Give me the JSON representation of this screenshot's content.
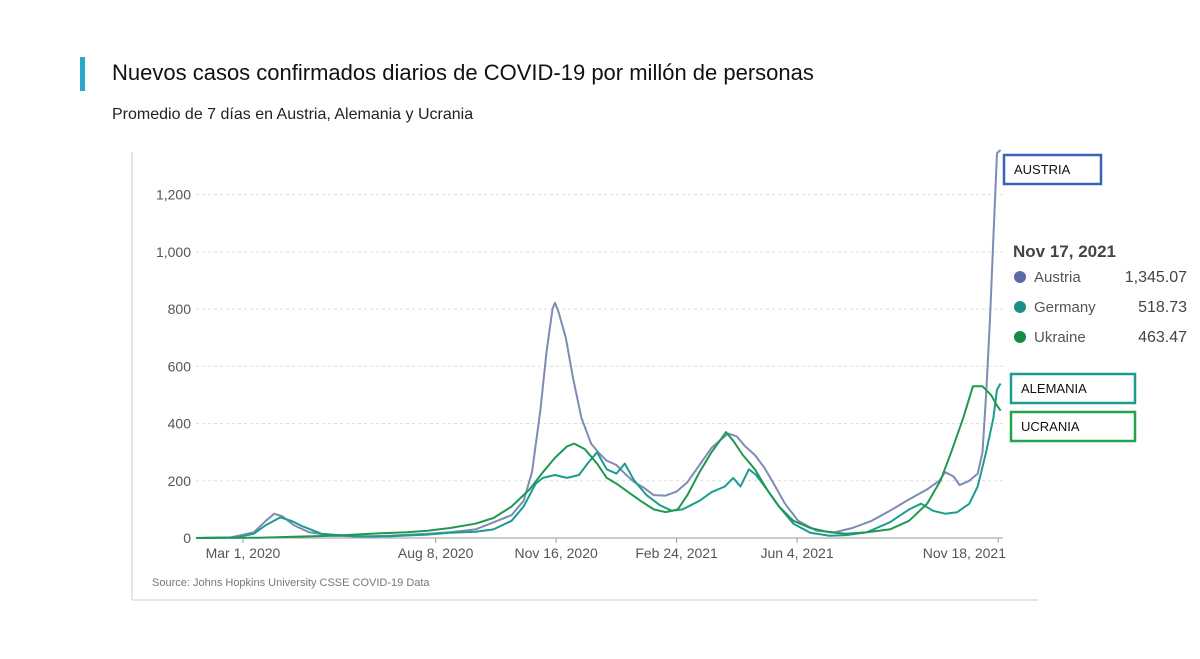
{
  "header": {
    "title": "Nuevos casos confirmados diarios de COVID-19 por millón de personas",
    "subtitle": "Promedio de 7 días en Austria, Alemania y Ucrania",
    "accent_color": "#2aa7c9"
  },
  "chart_data": {
    "type": "line",
    "title": "Nuevos casos confirmados diarios de COVID-19 por millón de personas",
    "subtitle": "Promedio de 7 días en Austria, Alemania y Ucrania",
    "xlabel": "",
    "ylabel": "",
    "x_ticks": [
      "Mar 1, 2020",
      "Aug 8, 2020",
      "Nov 16, 2020",
      "Feb 24, 2021",
      "Jun 4, 2021",
      "Nov 18, 2021"
    ],
    "y_ticks": [
      0,
      200,
      400,
      600,
      800,
      1000,
      1200
    ],
    "y_tick_labels": [
      "0",
      "200",
      "400",
      "600",
      "800",
      "1,000",
      "1,200"
    ],
    "ylim": [
      0,
      1300
    ],
    "xlim": [
      "2020-01-22",
      "2021-11-22"
    ],
    "grid": "horizontal dashed",
    "source": "Source: Johns Hopkins University CSSE COVID-19 Data",
    "series": [
      {
        "name": "Austria",
        "color": "#7d8cb5",
        "points": [
          [
            "2020-01-22",
            0
          ],
          [
            "2020-02-20",
            2
          ],
          [
            "2020-03-10",
            20
          ],
          [
            "2020-03-20",
            60
          ],
          [
            "2020-03-27",
            85
          ],
          [
            "2020-04-03",
            75
          ],
          [
            "2020-04-12",
            45
          ],
          [
            "2020-04-25",
            20
          ],
          [
            "2020-05-15",
            8
          ],
          [
            "2020-06-15",
            5
          ],
          [
            "2020-07-10",
            10
          ],
          [
            "2020-08-01",
            15
          ],
          [
            "2020-08-20",
            20
          ],
          [
            "2020-09-10",
            30
          ],
          [
            "2020-09-25",
            55
          ],
          [
            "2020-10-10",
            80
          ],
          [
            "2020-10-20",
            130
          ],
          [
            "2020-10-27",
            230
          ],
          [
            "2020-11-03",
            450
          ],
          [
            "2020-11-08",
            650
          ],
          [
            "2020-11-13",
            800
          ],
          [
            "2020-11-15",
            822
          ],
          [
            "2020-11-18",
            790
          ],
          [
            "2020-11-24",
            700
          ],
          [
            "2020-11-30",
            560
          ],
          [
            "2020-12-07",
            420
          ],
          [
            "2020-12-15",
            330
          ],
          [
            "2020-12-22",
            295
          ],
          [
            "2020-12-28",
            270
          ],
          [
            "2021-01-05",
            255
          ],
          [
            "2021-01-12",
            225
          ],
          [
            "2021-01-20",
            195
          ],
          [
            "2021-01-28",
            175
          ],
          [
            "2021-02-05",
            150
          ],
          [
            "2021-02-15",
            148
          ],
          [
            "2021-02-24",
            162
          ],
          [
            "2021-03-05",
            195
          ],
          [
            "2021-03-15",
            255
          ],
          [
            "2021-03-25",
            315
          ],
          [
            "2021-04-02",
            345
          ],
          [
            "2021-04-08",
            365
          ],
          [
            "2021-04-15",
            355
          ],
          [
            "2021-04-22",
            320
          ],
          [
            "2021-04-30",
            290
          ],
          [
            "2021-05-08",
            245
          ],
          [
            "2021-05-15",
            195
          ],
          [
            "2021-05-25",
            120
          ],
          [
            "2021-06-05",
            60
          ],
          [
            "2021-06-20",
            25
          ],
          [
            "2021-07-05",
            20
          ],
          [
            "2021-07-20",
            35
          ],
          [
            "2021-08-05",
            60
          ],
          [
            "2021-08-20",
            95
          ],
          [
            "2021-09-05",
            135
          ],
          [
            "2021-09-20",
            170
          ],
          [
            "2021-09-30",
            200
          ],
          [
            "2021-10-05",
            230
          ],
          [
            "2021-10-12",
            215
          ],
          [
            "2021-10-17",
            185
          ],
          [
            "2021-10-25",
            200
          ],
          [
            "2021-11-01",
            225
          ],
          [
            "2021-11-05",
            300
          ],
          [
            "2021-11-08",
            500
          ],
          [
            "2021-11-11",
            750
          ],
          [
            "2021-11-14",
            1050
          ],
          [
            "2021-11-17",
            1345.07
          ],
          [
            "2021-11-20",
            1440
          ]
        ]
      },
      {
        "name": "Germany",
        "color": "#1e9b8f",
        "points": [
          [
            "2020-01-22",
            0
          ],
          [
            "2020-02-25",
            2
          ],
          [
            "2020-03-10",
            15
          ],
          [
            "2020-03-20",
            45
          ],
          [
            "2020-04-01",
            72
          ],
          [
            "2020-04-10",
            60
          ],
          [
            "2020-04-20",
            40
          ],
          [
            "2020-05-05",
            15
          ],
          [
            "2020-06-01",
            6
          ],
          [
            "2020-07-01",
            6
          ],
          [
            "2020-08-01",
            12
          ],
          [
            "2020-08-20",
            18
          ],
          [
            "2020-09-10",
            22
          ],
          [
            "2020-09-25",
            30
          ],
          [
            "2020-10-10",
            60
          ],
          [
            "2020-10-20",
            110
          ],
          [
            "2020-10-30",
            190
          ],
          [
            "2020-11-05",
            210
          ],
          [
            "2020-11-15",
            220
          ],
          [
            "2020-11-25",
            210
          ],
          [
            "2020-12-05",
            220
          ],
          [
            "2020-12-12",
            260
          ],
          [
            "2020-12-20",
            300
          ],
          [
            "2020-12-28",
            240
          ],
          [
            "2021-01-05",
            225
          ],
          [
            "2021-01-12",
            260
          ],
          [
            "2021-01-20",
            200
          ],
          [
            "2021-01-30",
            150
          ],
          [
            "2021-02-10",
            115
          ],
          [
            "2021-02-20",
            95
          ],
          [
            "2021-03-01",
            100
          ],
          [
            "2021-03-15",
            130
          ],
          [
            "2021-03-25",
            160
          ],
          [
            "2021-04-05",
            180
          ],
          [
            "2021-04-12",
            210
          ],
          [
            "2021-04-18",
            180
          ],
          [
            "2021-04-25",
            240
          ],
          [
            "2021-05-01",
            220
          ],
          [
            "2021-05-10",
            170
          ],
          [
            "2021-05-20",
            110
          ],
          [
            "2021-06-01",
            50
          ],
          [
            "2021-06-15",
            18
          ],
          [
            "2021-07-01",
            8
          ],
          [
            "2021-07-15",
            10
          ],
          [
            "2021-08-01",
            20
          ],
          [
            "2021-08-20",
            55
          ],
          [
            "2021-09-05",
            100
          ],
          [
            "2021-09-15",
            120
          ],
          [
            "2021-09-25",
            95
          ],
          [
            "2021-10-05",
            85
          ],
          [
            "2021-10-15",
            90
          ],
          [
            "2021-10-25",
            120
          ],
          [
            "2021-11-01",
            180
          ],
          [
            "2021-11-08",
            300
          ],
          [
            "2021-11-14",
            420
          ],
          [
            "2021-11-17",
            518.73
          ],
          [
            "2021-11-20",
            540
          ]
        ]
      },
      {
        "name": "Ukraine",
        "color": "#1f9950",
        "points": [
          [
            "2020-01-22",
            0
          ],
          [
            "2020-03-15",
            1
          ],
          [
            "2020-04-15",
            5
          ],
          [
            "2020-05-15",
            8
          ],
          [
            "2020-06-15",
            15
          ],
          [
            "2020-07-15",
            20
          ],
          [
            "2020-08-01",
            25
          ],
          [
            "2020-08-20",
            35
          ],
          [
            "2020-09-10",
            50
          ],
          [
            "2020-09-25",
            70
          ],
          [
            "2020-10-10",
            110
          ],
          [
            "2020-10-25",
            170
          ],
          [
            "2020-11-05",
            230
          ],
          [
            "2020-11-15",
            280
          ],
          [
            "2020-11-25",
            320
          ],
          [
            "2020-12-01",
            330
          ],
          [
            "2020-12-10",
            310
          ],
          [
            "2020-12-20",
            260
          ],
          [
            "2020-12-28",
            210
          ],
          [
            "2021-01-05",
            190
          ],
          [
            "2021-01-15",
            160
          ],
          [
            "2021-01-25",
            130
          ],
          [
            "2021-02-05",
            100
          ],
          [
            "2021-02-15",
            90
          ],
          [
            "2021-02-25",
            100
          ],
          [
            "2021-03-05",
            150
          ],
          [
            "2021-03-15",
            230
          ],
          [
            "2021-03-25",
            300
          ],
          [
            "2021-04-01",
            340
          ],
          [
            "2021-04-06",
            370
          ],
          [
            "2021-04-12",
            340
          ],
          [
            "2021-04-20",
            290
          ],
          [
            "2021-04-30",
            240
          ],
          [
            "2021-05-10",
            170
          ],
          [
            "2021-05-20",
            110
          ],
          [
            "2021-06-01",
            60
          ],
          [
            "2021-06-15",
            35
          ],
          [
            "2021-07-01",
            20
          ],
          [
            "2021-07-15",
            15
          ],
          [
            "2021-08-01",
            20
          ],
          [
            "2021-08-20",
            30
          ],
          [
            "2021-09-05",
            60
          ],
          [
            "2021-09-20",
            120
          ],
          [
            "2021-10-01",
            200
          ],
          [
            "2021-10-10",
            300
          ],
          [
            "2021-10-20",
            420
          ],
          [
            "2021-10-28",
            530
          ],
          [
            "2021-11-05",
            530
          ],
          [
            "2021-11-12",
            500
          ],
          [
            "2021-11-17",
            463.47
          ],
          [
            "2021-11-20",
            445
          ]
        ]
      }
    ],
    "tooltip": {
      "date": "Nov 17, 2021",
      "rows": [
        {
          "name": "Austria",
          "value": "1,345.07",
          "color": "#5b6aa8"
        },
        {
          "name": "Germany",
          "value": "518.73",
          "color": "#1e8f86"
        },
        {
          "name": "Ukraine",
          "value": "463.47",
          "color": "#168a45"
        }
      ]
    },
    "annotations": [
      {
        "label": "AUSTRIA",
        "color": "#3a62b5"
      },
      {
        "label": "ALEMANIA",
        "color": "#1e9b8f"
      },
      {
        "label": "UCRANIA",
        "color": "#22a24c"
      }
    ]
  }
}
